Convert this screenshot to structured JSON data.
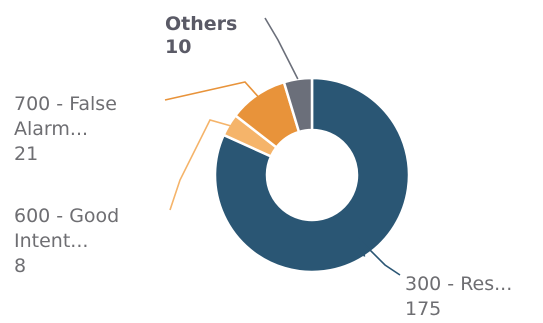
{
  "chart_data": {
    "type": "pie",
    "style": "donut",
    "slices": [
      {
        "label_line1": "300 - Res...",
        "value": 175,
        "color": "#2a5674"
      },
      {
        "label_line1": "600 - Good",
        "label_line2": "Intent...",
        "value": 8,
        "color": "#f5b46a"
      },
      {
        "label_line1": "700 - False",
        "label_line2": "Alarm...",
        "value": 21,
        "color": "#e8933a"
      },
      {
        "label_line1": "Others",
        "value": 10,
        "color": "#6b6f7a"
      }
    ]
  }
}
